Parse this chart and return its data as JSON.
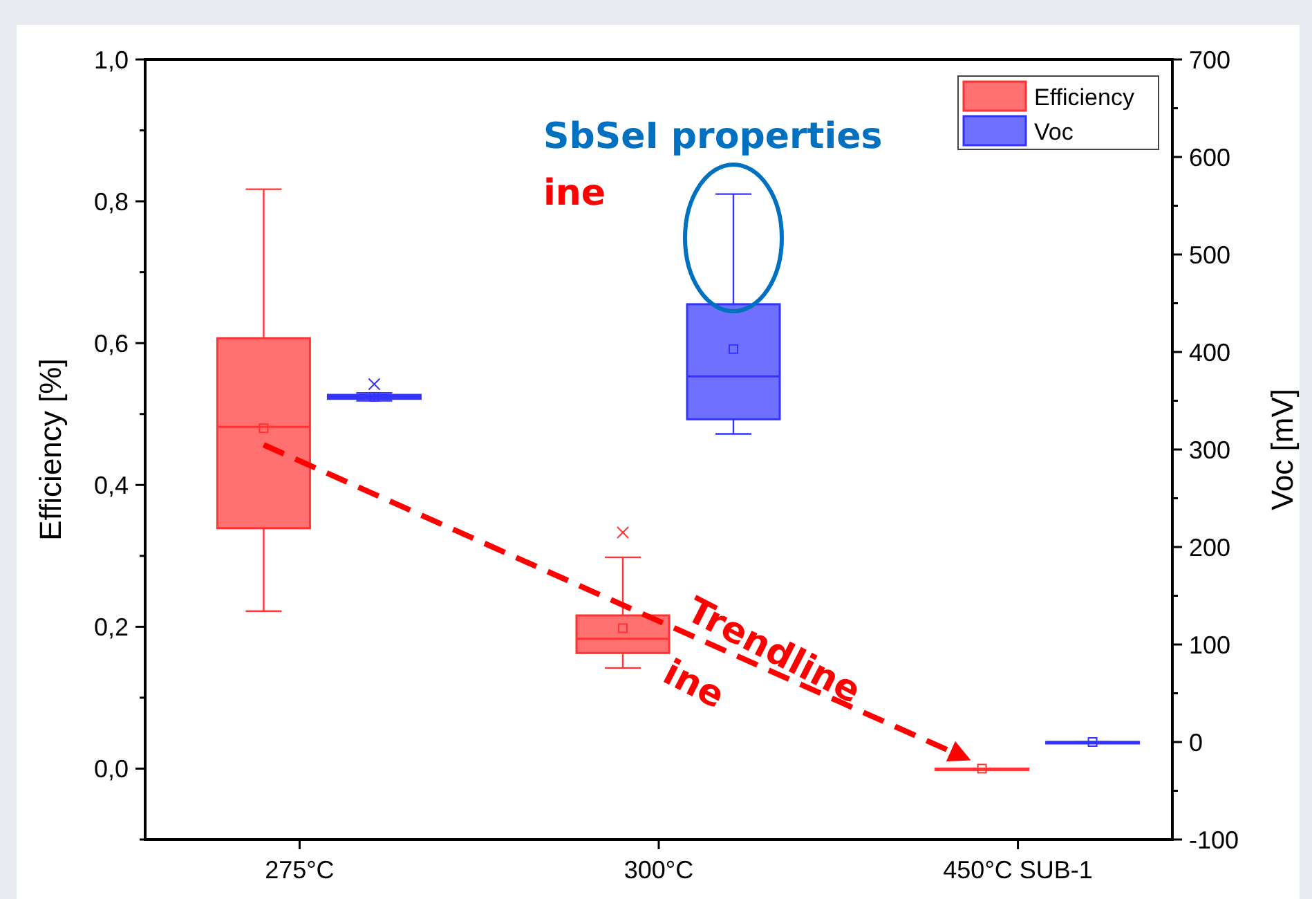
{
  "chart_data": {
    "type": "box",
    "categories": [
      "275°C",
      "300°C",
      "450°C SUB-1"
    ],
    "ylabel": "Efficiency [%]",
    "y2label": "Voc [mV]",
    "ylim": [
      -0.1,
      1.0
    ],
    "yticks": [
      {
        "value": -0.1,
        "label": null
      },
      {
        "value": 0,
        "label": "0,0"
      },
      {
        "value": 0.1,
        "label": null
      },
      {
        "value": 0.2,
        "label": "0,2"
      },
      {
        "value": 0.3,
        "label": null
      },
      {
        "value": 0.4,
        "label": "0,4"
      },
      {
        "value": 0.5,
        "label": null
      },
      {
        "value": 0.6,
        "label": "0,6"
      },
      {
        "value": 0.7,
        "label": null
      },
      {
        "value": 0.8,
        "label": "0,8"
      },
      {
        "value": 0.9,
        "label": null
      },
      {
        "value": 1.0,
        "label": "1,0"
      }
    ],
    "y2lim": [
      -100,
      700
    ],
    "y2ticks": [
      -100,
      {
        "value": -50,
        "label": null
      },
      0,
      {
        "value": 50,
        "label": null
      },
      100,
      {
        "value": 150,
        "label": null
      },
      200,
      {
        "value": 250,
        "label": null
      },
      300,
      {
        "value": 350,
        "label": null
      },
      400,
      {
        "value": 450,
        "label": null
      },
      500,
      {
        "value": 550,
        "label": null
      },
      600,
      {
        "value": 650,
        "label": null
      },
      700
    ],
    "legend": "top right",
    "series": [
      {
        "name": "Efficiency",
        "color": "#ff3333",
        "boxes": [
          {
            "low": 0.222,
            "q1": 0.339,
            "median": 0.482,
            "q3": 0.607,
            "high": 0.817,
            "mean": 0.48
          },
          {
            "low": 0.142,
            "q1": 0.163,
            "median": 0.183,
            "q3": 0.216,
            "high": 0.298,
            "mean": 0.198,
            "outliers": [
              0.333
            ]
          },
          {
            "low": 0,
            "q1": 0,
            "median": 0,
            "q3": 0,
            "high": 0,
            "mean": 0
          }
        ]
      },
      {
        "name": "Voc",
        "color": "#3333ff",
        "axis": "y2",
        "boxes": [
          {
            "low": 350,
            "q1": 352,
            "median": 354,
            "q3": 356,
            "high": 358,
            "mean": 354,
            "outliers": [
              367
            ]
          },
          {
            "low": 316,
            "q1": 331,
            "median": 375,
            "q3": 449,
            "high": 562,
            "mean": 403
          },
          {
            "low": 0,
            "q1": 0,
            "median": 0,
            "q3": 0,
            "high": 0,
            "mean": 0
          }
        ]
      }
    ],
    "annotations": [
      "SbSeI properties",
      "ine",
      "Trendline",
      "ine"
    ]
  }
}
